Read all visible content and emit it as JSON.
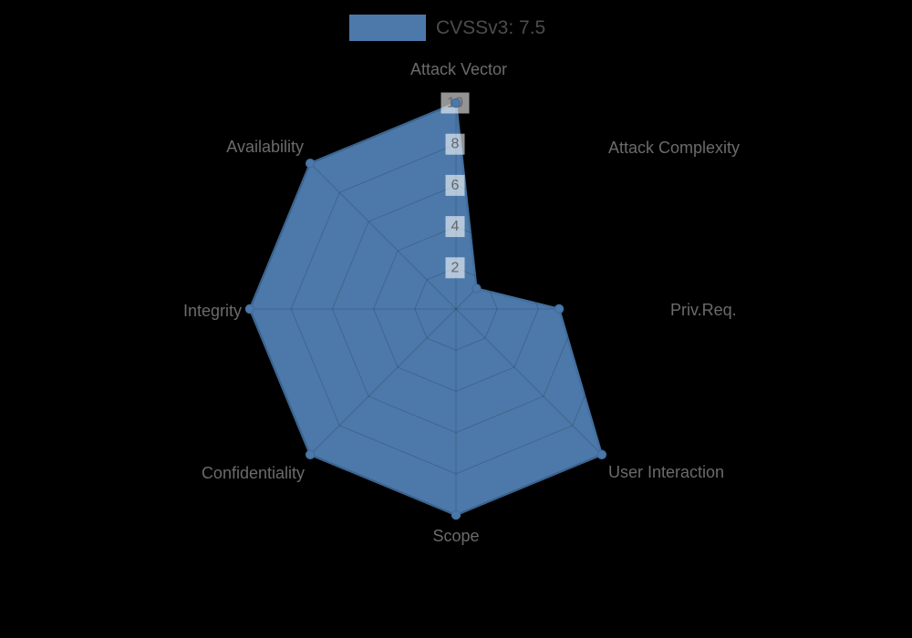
{
  "chart_data": {
    "type": "radar",
    "legend": {
      "label": "CVSSv3: 7.5",
      "position": "top"
    },
    "axes": [
      "Attack Vector",
      "Attack Complexity",
      "Priv.Req.",
      "User Interaction",
      "Scope",
      "Confidentiality",
      "Integrity",
      "Availability"
    ],
    "series": [
      {
        "name": "CVSSv3: 7.5",
        "values": [
          10,
          1.4,
          5,
          10,
          10,
          10,
          10,
          10
        ]
      }
    ],
    "scale": {
      "min": 0,
      "max": 10,
      "ticks": [
        2,
        4,
        6,
        8,
        10
      ]
    },
    "grid": true,
    "colors": {
      "background": "#000000",
      "fill": "#4c79a9",
      "stroke": "#426f9f",
      "grid": "rgba(0,0,0,0.16)",
      "tick_backdrop": "rgba(255,255,255,0.58)",
      "tick_text": "#666666",
      "axis_label": "#6b6b6b",
      "legend_text": "#4c4c4c"
    }
  }
}
